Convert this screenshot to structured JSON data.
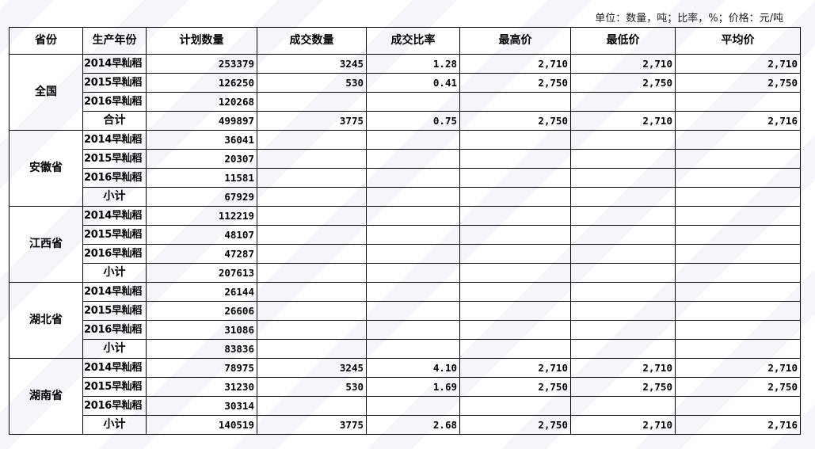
{
  "unit_note": "单位：数量，吨；比率，%；价格：元/吨",
  "headers": [
    "省份",
    "生产年份",
    "计划数量",
    "成交数量",
    "成交比率",
    "最高价",
    "最低价",
    "平均价"
  ],
  "groups": [
    {
      "province": "全国",
      "rows": [
        {
          "year": "2014早籼稻",
          "plan": "253379",
          "deal": "3245",
          "ratio": "1.28",
          "high": "2,710",
          "low": "2,710",
          "avg": "2,710"
        },
        {
          "year": "2015早籼稻",
          "plan": "126250",
          "deal": "530",
          "ratio": "0.41",
          "high": "2,750",
          "low": "2,750",
          "avg": "2,750"
        },
        {
          "year": "2016早籼稻",
          "plan": "120268",
          "deal": "",
          "ratio": "",
          "high": "",
          "low": "",
          "avg": ""
        },
        {
          "year": "合计",
          "plan": "499897",
          "deal": "3775",
          "ratio": "0.75",
          "high": "2,750",
          "low": "2,710",
          "avg": "2,716"
        }
      ]
    },
    {
      "province": "安徽省",
      "rows": [
        {
          "year": "2014早籼稻",
          "plan": "36041",
          "deal": "",
          "ratio": "",
          "high": "",
          "low": "",
          "avg": ""
        },
        {
          "year": "2015早籼稻",
          "plan": "20307",
          "deal": "",
          "ratio": "",
          "high": "",
          "low": "",
          "avg": ""
        },
        {
          "year": "2016早籼稻",
          "plan": "11581",
          "deal": "",
          "ratio": "",
          "high": "",
          "low": "",
          "avg": ""
        },
        {
          "year": "小计",
          "plan": "67929",
          "deal": "",
          "ratio": "",
          "high": "",
          "low": "",
          "avg": ""
        }
      ]
    },
    {
      "province": "江西省",
      "rows": [
        {
          "year": "2014早籼稻",
          "plan": "112219",
          "deal": "",
          "ratio": "",
          "high": "",
          "low": "",
          "avg": ""
        },
        {
          "year": "2015早籼稻",
          "plan": "48107",
          "deal": "",
          "ratio": "",
          "high": "",
          "low": "",
          "avg": ""
        },
        {
          "year": "2016早籼稻",
          "plan": "47287",
          "deal": "",
          "ratio": "",
          "high": "",
          "low": "",
          "avg": ""
        },
        {
          "year": "小计",
          "plan": "207613",
          "deal": "",
          "ratio": "",
          "high": "",
          "low": "",
          "avg": ""
        }
      ]
    },
    {
      "province": "湖北省",
      "rows": [
        {
          "year": "2014早籼稻",
          "plan": "26144",
          "deal": "",
          "ratio": "",
          "high": "",
          "low": "",
          "avg": ""
        },
        {
          "year": "2015早籼稻",
          "plan": "26606",
          "deal": "",
          "ratio": "",
          "high": "",
          "low": "",
          "avg": ""
        },
        {
          "year": "2016早籼稻",
          "plan": "31086",
          "deal": "",
          "ratio": "",
          "high": "",
          "low": "",
          "avg": ""
        },
        {
          "year": "小计",
          "plan": "83836",
          "deal": "",
          "ratio": "",
          "high": "",
          "low": "",
          "avg": ""
        }
      ]
    },
    {
      "province": "湖南省",
      "rows": [
        {
          "year": "2014早籼稻",
          "plan": "78975",
          "deal": "3245",
          "ratio": "4.10",
          "high": "2,710",
          "low": "2,710",
          "avg": "2,710"
        },
        {
          "year": "2015早籼稻",
          "plan": "31230",
          "deal": "530",
          "ratio": "1.69",
          "high": "2,750",
          "low": "2,750",
          "avg": "2,750"
        },
        {
          "year": "2016早籼稻",
          "plan": "30314",
          "deal": "",
          "ratio": "",
          "high": "",
          "low": "",
          "avg": ""
        },
        {
          "year": "小计",
          "plan": "140519",
          "deal": "3775",
          "ratio": "2.68",
          "high": "2,750",
          "low": "2,710",
          "avg": "2,716"
        }
      ]
    }
  ]
}
